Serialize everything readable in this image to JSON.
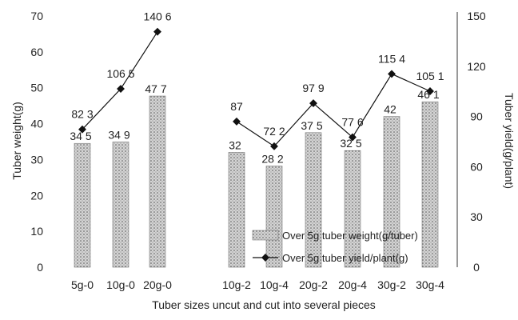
{
  "chart_data": {
    "type": "bar",
    "categories": [
      "5g-0",
      "10g-0",
      "20g-0",
      "10g-2",
      "10g-4",
      "20g-2",
      "20g-4",
      "30g-2",
      "30g-4"
    ],
    "series": [
      {
        "name": "Over 5g tuber weight(g/tuber)",
        "type": "bar",
        "axis": "left",
        "values": [
          34.5,
          34.9,
          47.7,
          32,
          28.2,
          37.5,
          32.5,
          42,
          46.1
        ],
        "labels": [
          "34 5",
          "34 9",
          "47 7",
          "32",
          "28 2",
          "37 5",
          "32 5",
          "42",
          "46 1"
        ]
      },
      {
        "name": "Over 5g tuber yield/plant(g)",
        "type": "line",
        "axis": "right",
        "values": [
          82.3,
          106.5,
          140.6,
          87,
          72.2,
          97.9,
          77.6,
          115.4,
          105.1
        ],
        "labels": [
          "82 3",
          "106 5",
          "140 6",
          "87",
          "72 2",
          "97 9",
          "77 6",
          "115 4",
          "105 1"
        ]
      }
    ],
    "xlabel": "Tuber sizes uncut and cut into several pieces",
    "ylabel": "Tuber weight(g)",
    "y2label": "Tuber yield(g/plant)",
    "ylim": [
      0,
      70
    ],
    "yticks": [
      "0",
      "10",
      "20",
      "30",
      "40",
      "50",
      "60",
      "70"
    ],
    "y2lim": [
      0,
      150
    ],
    "y2ticks": [
      "0",
      "30",
      "60",
      "90",
      "120",
      "150"
    ],
    "grid": false,
    "legend_position": "lower-right",
    "colors": {
      "bar_fill": "#c8c8c8",
      "line": "#111111",
      "axis": "#333333"
    }
  }
}
